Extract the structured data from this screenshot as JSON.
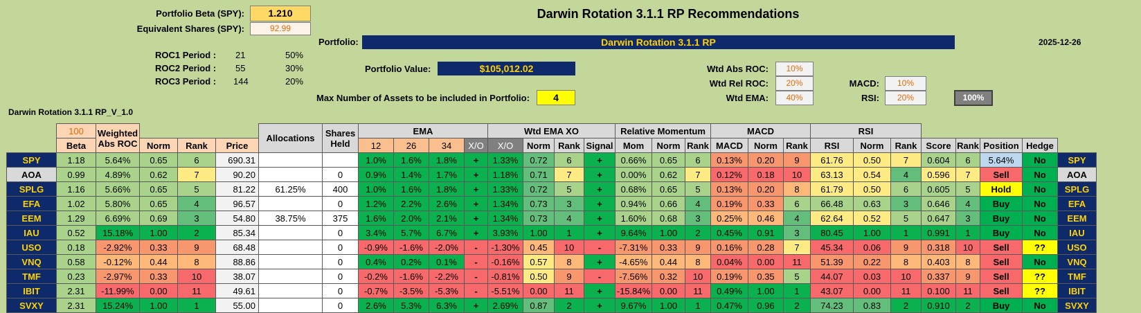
{
  "header": {
    "title": "Darwin Rotation 3.1.1 RP Recommendations",
    "beta_label": "Portfolio Beta (SPY):",
    "beta_value": "1.210",
    "eq_label": "Equivalent Shares (SPY):",
    "eq_value": "92.99",
    "portfolio_label": "Portfolio:",
    "portfolio_name": "Darwin Rotation 3.1.1 RP",
    "date": "2025-12-26",
    "value_label": "Portfolio Value:",
    "value": "$105,012.02",
    "max_assets_label": "Max Number of Assets to be included in Portfolio:",
    "max_assets": "4",
    "sheet_name": "Darwin Rotation 3.1.1 RP_V_1.0"
  },
  "roc": [
    {
      "label": "ROC1 Period :",
      "period": "21",
      "weight": "50%"
    },
    {
      "label": "ROC2 Period :",
      "period": "55",
      "weight": "30%"
    },
    {
      "label": "ROC3 Period :",
      "period": "144",
      "weight": "20%"
    }
  ],
  "weights": {
    "abs_roc_label": "Wtd Abs ROC:",
    "abs_roc": "10%",
    "rel_roc_label": "Wtd Rel ROC:",
    "rel_roc": "20%",
    "ema_label": "Wtd EMA:",
    "ema": "40%",
    "macd_label": "MACD:",
    "macd": "10%",
    "rsi_label": "RSI:",
    "rsi": "20%",
    "total": "100%"
  },
  "table": {
    "beta_top": "100",
    "h_beta": "Beta",
    "h_wabs": "Weighted Abs ROC",
    "h_norm": "Norm",
    "h_rank": "Rank",
    "h_price": "Price",
    "h_alloc": "Allocations",
    "h_shares": "Shares Held",
    "h_ema": "EMA",
    "h_ema12": "12",
    "h_ema26": "26",
    "h_ema34": "34",
    "h_xo": "X/O",
    "h_wema": "Wtd EMA XO",
    "h_signal": "Signal",
    "h_relmom": "Relative Momentum",
    "h_mom": "Mom",
    "h_macd": "MACD",
    "h_rsi": "RSI",
    "h_score": "Score",
    "h_position": "Position",
    "h_hedge": "Hedge",
    "rows": [
      {
        "sym": "SPY",
        "beta": "1.18",
        "wabs": "5.64%",
        "n1": "0.65",
        "r1": "6",
        "price": "690.31",
        "alloc": "",
        "shares": "",
        "e12": "1.0%",
        "e26": "1.6%",
        "e34": "1.8%",
        "xo": "+",
        "wx": "1.33%",
        "n2": "0.72",
        "r2": "6",
        "sig": "+",
        "mom": "0.66%",
        "n3": "0.65",
        "r3": "6",
        "macd": "0.13%",
        "n4": "0.20",
        "r4": "9",
        "rsi": "61.76",
        "n5": "0.50",
        "r5": "7",
        "score": "0.604",
        "r6": "6",
        "pos": "5.64%",
        "hedge": "No"
      },
      {
        "sym": "AOA",
        "beta": "0.99",
        "wabs": "4.89%",
        "n1": "0.62",
        "r1": "7",
        "price": "90.20",
        "alloc": "",
        "shares": "0",
        "e12": "0.9%",
        "e26": "1.4%",
        "e34": "1.7%",
        "xo": "+",
        "wx": "1.18%",
        "n2": "0.71",
        "r2": "7",
        "sig": "+",
        "mom": "0.00%",
        "n3": "0.62",
        "r3": "7",
        "macd": "0.12%",
        "n4": "0.18",
        "r4": "10",
        "rsi": "63.13",
        "n5": "0.54",
        "r5": "4",
        "score": "0.596",
        "r6": "7",
        "pos": "Sell",
        "hedge": "No"
      },
      {
        "sym": "SPLG",
        "beta": "1.16",
        "wabs": "5.66%",
        "n1": "0.65",
        "r1": "5",
        "price": "81.22",
        "alloc": "61.25%",
        "shares": "400",
        "e12": "1.0%",
        "e26": "1.6%",
        "e34": "1.8%",
        "xo": "+",
        "wx": "1.33%",
        "n2": "0.72",
        "r2": "5",
        "sig": "+",
        "mom": "0.68%",
        "n3": "0.65",
        "r3": "5",
        "macd": "0.13%",
        "n4": "0.20",
        "r4": "8",
        "rsi": "61.79",
        "n5": "0.50",
        "r5": "6",
        "score": "0.605",
        "r6": "5",
        "pos": "Hold",
        "hedge": "No"
      },
      {
        "sym": "EFA",
        "beta": "1.02",
        "wabs": "5.80%",
        "n1": "0.65",
        "r1": "4",
        "price": "96.57",
        "alloc": "",
        "shares": "0",
        "e12": "1.2%",
        "e26": "2.2%",
        "e34": "2.6%",
        "xo": "+",
        "wx": "1.34%",
        "n2": "0.73",
        "r2": "3",
        "sig": "+",
        "mom": "0.94%",
        "n3": "0.66",
        "r3": "4",
        "macd": "0.19%",
        "n4": "0.33",
        "r4": "6",
        "rsi": "66.48",
        "n5": "0.63",
        "r5": "3",
        "score": "0.646",
        "r6": "4",
        "pos": "Buy",
        "hedge": "No"
      },
      {
        "sym": "EEM",
        "beta": "1.29",
        "wabs": "6.69%",
        "n1": "0.69",
        "r1": "3",
        "price": "54.80",
        "alloc": "38.75%",
        "shares": "375",
        "e12": "1.6%",
        "e26": "2.0%",
        "e34": "2.1%",
        "xo": "+",
        "wx": "1.34%",
        "n2": "0.73",
        "r2": "4",
        "sig": "+",
        "mom": "1.60%",
        "n3": "0.68",
        "r3": "3",
        "macd": "0.25%",
        "n4": "0.46",
        "r4": "4",
        "rsi": "62.64",
        "n5": "0.52",
        "r5": "5",
        "score": "0.647",
        "r6": "3",
        "pos": "Buy",
        "hedge": "No"
      },
      {
        "sym": "IAU",
        "beta": "0.52",
        "wabs": "15.18%",
        "n1": "1.00",
        "r1": "2",
        "price": "85.34",
        "alloc": "",
        "shares": "0",
        "e12": "3.4%",
        "e26": "5.7%",
        "e34": "6.7%",
        "xo": "+",
        "wx": "3.93%",
        "n2": "1.00",
        "r2": "1",
        "sig": "+",
        "mom": "9.64%",
        "n3": "1.00",
        "r3": "2",
        "macd": "0.45%",
        "n4": "0.91",
        "r4": "3",
        "rsi": "80.45",
        "n5": "1.00",
        "r5": "1",
        "score": "0.991",
        "r6": "1",
        "pos": "Buy",
        "hedge": "No"
      },
      {
        "sym": "USO",
        "beta": "0.18",
        "wabs": "-2.92%",
        "n1": "0.33",
        "r1": "9",
        "price": "68.48",
        "alloc": "",
        "shares": "0",
        "e12": "-0.9%",
        "e26": "-1.6%",
        "e34": "-2.0%",
        "xo": "-",
        "wx": "-1.30%",
        "n2": "0.45",
        "r2": "10",
        "sig": "-",
        "mom": "-7.31%",
        "n3": "0.33",
        "r3": "9",
        "macd": "0.16%",
        "n4": "0.28",
        "r4": "7",
        "rsi": "45.34",
        "n5": "0.06",
        "r5": "9",
        "score": "0.318",
        "r6": "10",
        "pos": "Sell",
        "hedge": "??"
      },
      {
        "sym": "VNQ",
        "beta": "0.58",
        "wabs": "-0.12%",
        "n1": "0.44",
        "r1": "8",
        "price": "88.86",
        "alloc": "",
        "shares": "0",
        "e12": "0.4%",
        "e26": "0.2%",
        "e34": "0.1%",
        "xo": "-",
        "wx": "-0.16%",
        "n2": "0.57",
        "r2": "8",
        "sig": "+",
        "mom": "-4.65%",
        "n3": "0.44",
        "r3": "8",
        "macd": "0.04%",
        "n4": "0.00",
        "r4": "11",
        "rsi": "51.39",
        "n5": "0.22",
        "r5": "8",
        "score": "0.403",
        "r6": "8",
        "pos": "Sell",
        "hedge": "No"
      },
      {
        "sym": "TMF",
        "beta": "0.23",
        "wabs": "-2.97%",
        "n1": "0.33",
        "r1": "10",
        "price": "38.07",
        "alloc": "",
        "shares": "0",
        "e12": "-0.2%",
        "e26": "-1.6%",
        "e34": "-2.2%",
        "xo": "-",
        "wx": "-0.81%",
        "n2": "0.50",
        "r2": "9",
        "sig": "-",
        "mom": "-7.56%",
        "n3": "0.32",
        "r3": "10",
        "macd": "0.19%",
        "n4": "0.35",
        "r4": "5",
        "rsi": "44.07",
        "n5": "0.03",
        "r5": "10",
        "score": "0.337",
        "r6": "9",
        "pos": "Sell",
        "hedge": "??"
      },
      {
        "sym": "IBIT",
        "beta": "2.31",
        "wabs": "-11.99%",
        "n1": "0.00",
        "r1": "11",
        "price": "49.61",
        "alloc": "",
        "shares": "0",
        "e12": "-0.7%",
        "e26": "-3.5%",
        "e34": "-5.3%",
        "xo": "-",
        "wx": "-5.51%",
        "n2": "0.00",
        "r2": "11",
        "sig": "+",
        "mom": "-15.84%",
        "n3": "0.00",
        "r3": "11",
        "macd": "0.49%",
        "n4": "1.00",
        "r4": "1",
        "rsi": "43.07",
        "n5": "0.00",
        "r5": "11",
        "score": "0.100",
        "r6": "11",
        "pos": "Sell",
        "hedge": "??"
      },
      {
        "sym": "SVXY",
        "beta": "2.31",
        "wabs": "15.24%",
        "n1": "1.00",
        "r1": "1",
        "price": "55.00",
        "alloc": "",
        "shares": "0",
        "e12": "2.6%",
        "e26": "5.3%",
        "e34": "6.3%",
        "xo": "+",
        "wx": "2.69%",
        "n2": "0.87",
        "r2": "2",
        "sig": "+",
        "mom": "9.67%",
        "n3": "1.00",
        "r3": "1",
        "macd": "0.47%",
        "n4": "0.96",
        "r4": "2",
        "rsi": "74.23",
        "n5": "0.83",
        "r5": "2",
        "score": "0.910",
        "r6": "2",
        "pos": "Buy",
        "hedge": "No"
      }
    ]
  },
  "colors": {
    "background": "#c4d79b",
    "navy": "#0f2a6b",
    "gold": "#ffd200"
  }
}
